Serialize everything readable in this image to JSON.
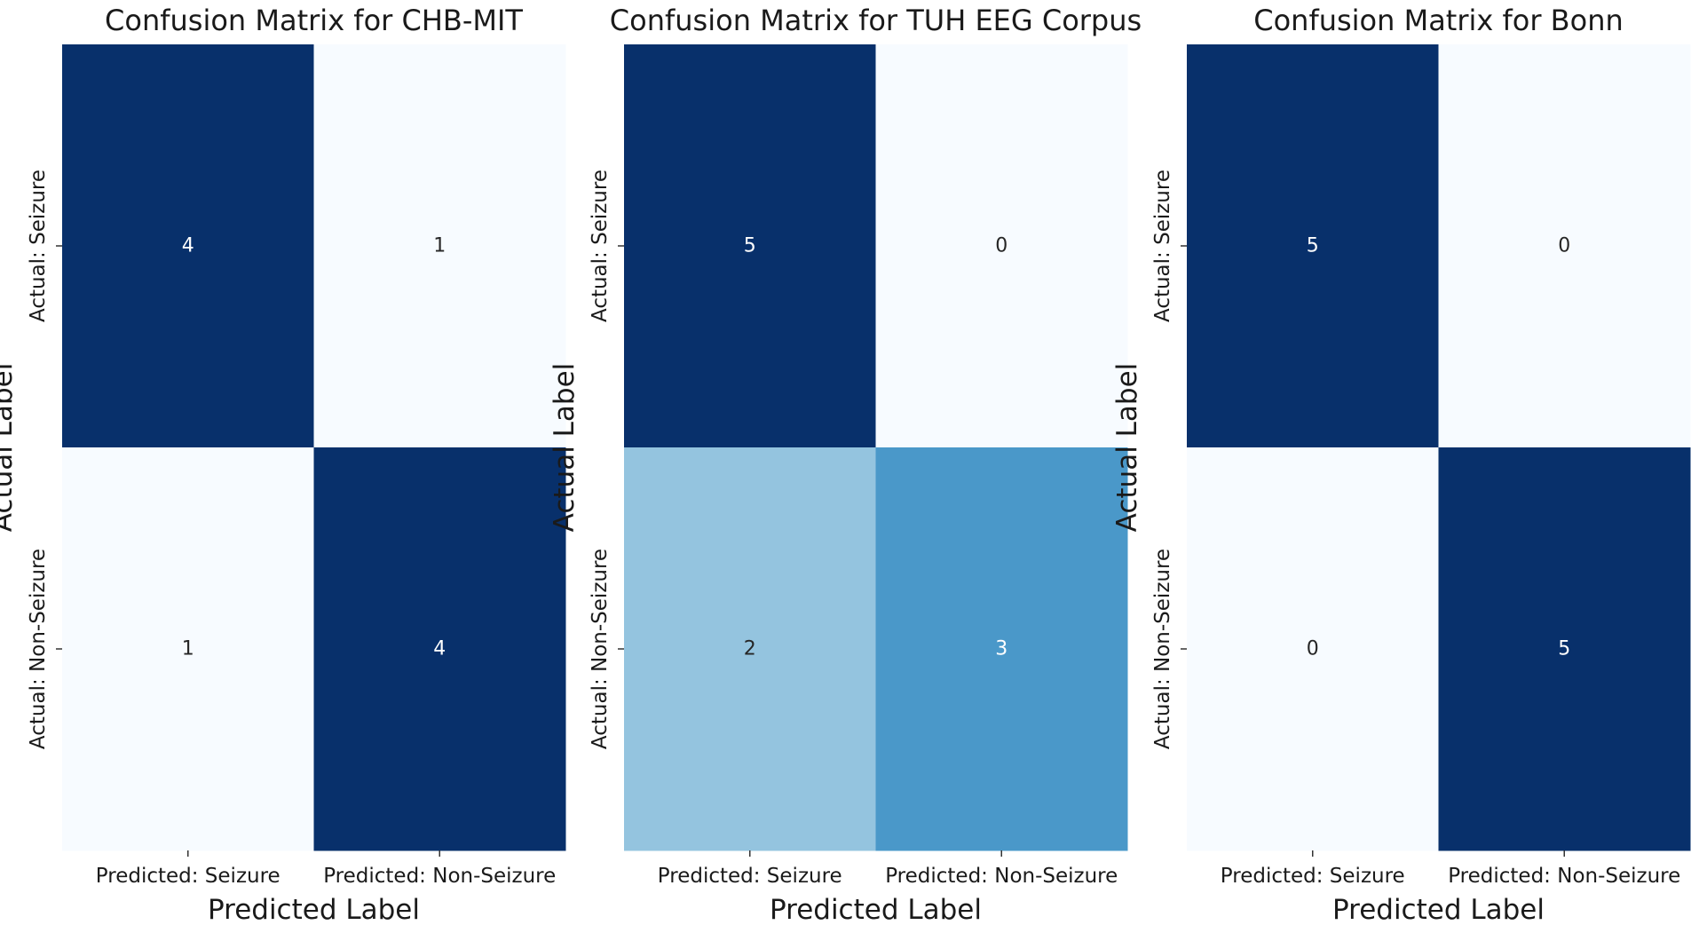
{
  "chart_data": [
    {
      "type": "heatmap",
      "title": "Confusion Matrix for CHB-MIT",
      "xlabel": "Predicted Label",
      "ylabel": "Actual Label",
      "x_categories": [
        "Predicted: Seizure",
        "Predicted: Non-Seizure"
      ],
      "y_categories": [
        "Actual: Seizure",
        "Actual: Non-Seizure"
      ],
      "values": [
        [
          4,
          1
        ],
        [
          1,
          4
        ]
      ],
      "colormap": "Blues",
      "colorbar": false
    },
    {
      "type": "heatmap",
      "title": "Confusion Matrix for TUH EEG Corpus",
      "xlabel": "Predicted Label",
      "ylabel": "Actual Label",
      "x_categories": [
        "Predicted: Seizure",
        "Predicted: Non-Seizure"
      ],
      "y_categories": [
        "Actual: Seizure",
        "Actual: Non-Seizure"
      ],
      "values": [
        [
          5,
          0
        ],
        [
          2,
          3
        ]
      ],
      "colormap": "Blues",
      "colorbar": false
    },
    {
      "type": "heatmap",
      "title": "Confusion Matrix for Bonn",
      "xlabel": "Predicted Label",
      "ylabel": "Actual Label",
      "x_categories": [
        "Predicted: Seizure",
        "Predicted: Non-Seizure"
      ],
      "y_categories": [
        "Actual: Seizure",
        "Actual: Non-Seizure"
      ],
      "values": [
        [
          5,
          0
        ],
        [
          0,
          5
        ]
      ],
      "colormap": "Blues",
      "colorbar": false
    }
  ]
}
